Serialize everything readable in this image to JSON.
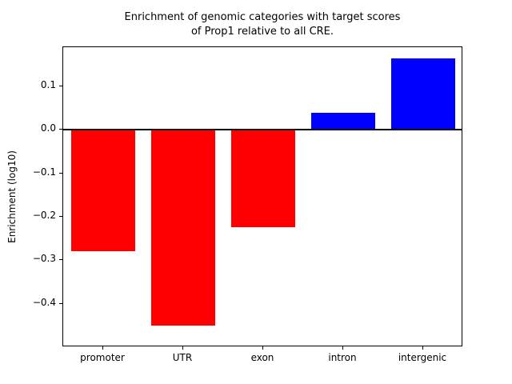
{
  "chart_data": {
    "type": "bar",
    "title": "Enrichment of genomic categories with target scores\nof Prop1 relative to all CRE.",
    "xlabel": "",
    "ylabel": "Enrichment (log10)",
    "categories": [
      "promoter",
      "UTR",
      "exon",
      "intron",
      "intergenic"
    ],
    "values": [
      -0.28,
      -0.45,
      -0.225,
      0.04,
      0.165
    ],
    "bar_colors": [
      "#ff0000",
      "#ff0000",
      "#ff0000",
      "#0000ff",
      "#0000ff"
    ],
    "negative_color": "#ff0000",
    "positive_color": "#0000ff",
    "ylim": [
      -0.5,
      0.19
    ],
    "yticks": [
      0.1,
      0.0,
      -0.1,
      -0.2,
      -0.3,
      -0.4
    ],
    "ytick_labels": [
      "0.1",
      "0.0",
      "−0.1",
      "−0.2",
      "−0.3",
      "−0.4"
    ],
    "bar_width_fraction": 0.8,
    "zero_line": true,
    "grid": false,
    "legend": "none",
    "background_color": "#ffffff",
    "axis_color": "#000000"
  }
}
